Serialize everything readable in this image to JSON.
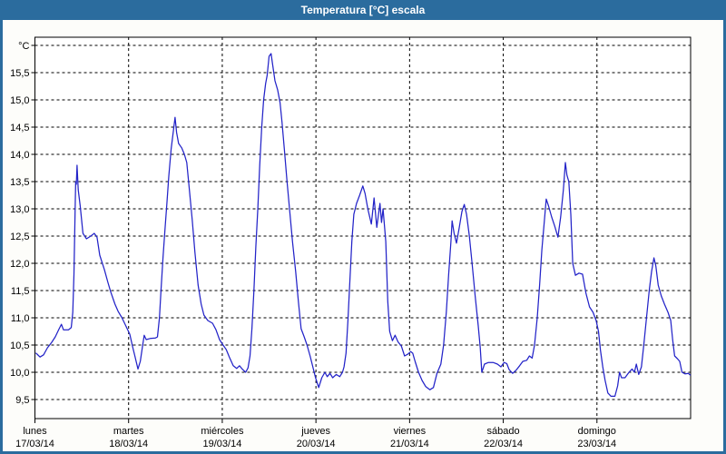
{
  "header": {
    "title": "Temperatura [°C] escala"
  },
  "colors": {
    "titlebar_blue": "#2b6c9e",
    "window_frame": "#2b6c9e",
    "plot_background": "#ffffff",
    "page_background": "#fdfdfa",
    "grid_and_axis": "#000000",
    "series_line": "#2323c8"
  },
  "chart_data": {
    "type": "line",
    "title": "Temperatura [°C] escala",
    "ylabel": "°C",
    "ylim": [
      9.5,
      16.0
    ],
    "x_range_hours": [
      0,
      168
    ],
    "grid": true,
    "legend": "none",
    "ygrid_values": [
      9.5,
      10.0,
      10.5,
      11.0,
      11.5,
      12.0,
      12.5,
      13.0,
      13.5,
      14.0,
      14.5,
      15.0,
      15.5,
      16.0
    ],
    "yticks": [
      {
        "value": 15.5,
        "label": "15,5"
      },
      {
        "value": 15.0,
        "label": "15,0"
      },
      {
        "value": 14.5,
        "label": "14,5"
      },
      {
        "value": 14.0,
        "label": "14,0"
      },
      {
        "value": 13.5,
        "label": "13,5"
      },
      {
        "value": 13.0,
        "label": "13,0"
      },
      {
        "value": 12.5,
        "label": "12,5"
      },
      {
        "value": 12.0,
        "label": "12,0"
      },
      {
        "value": 11.5,
        "label": "11,5"
      },
      {
        "value": 11.0,
        "label": "11,0"
      },
      {
        "value": 10.5,
        "label": "10,5"
      },
      {
        "value": 10.0,
        "label": "10,0"
      },
      {
        "value": 9.5,
        "label": "9,5"
      }
    ],
    "x_axis": {
      "unit": "days",
      "days": [
        {
          "name": "lunes",
          "date": "17/03/14"
        },
        {
          "name": "martes",
          "date": "18/03/14"
        },
        {
          "name": "miércoles",
          "date": "19/03/14"
        },
        {
          "name": "jueves",
          "date": "20/03/14"
        },
        {
          "name": "viernes",
          "date": "21/03/14"
        },
        {
          "name": "sábado",
          "date": "22/03/14"
        },
        {
          "name": "domingo",
          "date": "23/03/14"
        }
      ]
    },
    "series": [
      {
        "name": "Temperatura",
        "color": "#2323c8",
        "points_hours_celsius": [
          [
            0.3,
            10.35
          ],
          [
            1.3,
            10.28
          ],
          [
            2.2,
            10.32
          ],
          [
            3.2,
            10.45
          ],
          [
            4.3,
            10.55
          ],
          [
            5.2,
            10.65
          ],
          [
            6.2,
            10.8
          ],
          [
            6.8,
            10.88
          ],
          [
            7.3,
            10.78
          ],
          [
            8.6,
            10.78
          ],
          [
            9.3,
            10.82
          ],
          [
            9.7,
            11.1
          ],
          [
            10.0,
            11.8
          ],
          [
            10.3,
            13.0
          ],
          [
            10.45,
            13.5
          ],
          [
            10.6,
            13.45
          ],
          [
            10.8,
            13.8
          ],
          [
            11.1,
            13.35
          ],
          [
            11.6,
            13.05
          ],
          [
            12.3,
            12.55
          ],
          [
            13.2,
            12.45
          ],
          [
            14.3,
            12.5
          ],
          [
            15.2,
            12.55
          ],
          [
            15.9,
            12.48
          ],
          [
            16.6,
            12.15
          ],
          [
            17.8,
            11.88
          ],
          [
            18.7,
            11.65
          ],
          [
            19.4,
            11.48
          ],
          [
            20.5,
            11.25
          ],
          [
            21.3,
            11.12
          ],
          [
            22.3,
            11.0
          ],
          [
            23.3,
            10.85
          ],
          [
            24.3,
            10.7
          ],
          [
            25.1,
            10.45
          ],
          [
            25.6,
            10.3
          ],
          [
            26.4,
            10.06
          ],
          [
            27.0,
            10.2
          ],
          [
            27.5,
            10.45
          ],
          [
            28.0,
            10.68
          ],
          [
            28.5,
            10.6
          ],
          [
            29.5,
            10.62
          ],
          [
            30.9,
            10.63
          ],
          [
            31.4,
            10.65
          ],
          [
            31.9,
            11.0
          ],
          [
            32.3,
            11.5
          ],
          [
            32.8,
            12.1
          ],
          [
            33.3,
            12.6
          ],
          [
            33.8,
            13.1
          ],
          [
            34.3,
            13.6
          ],
          [
            34.9,
            14.1
          ],
          [
            35.5,
            14.45
          ],
          [
            35.9,
            14.68
          ],
          [
            36.3,
            14.4
          ],
          [
            36.8,
            14.2
          ],
          [
            37.6,
            14.12
          ],
          [
            38.3,
            14.0
          ],
          [
            38.9,
            13.85
          ],
          [
            39.5,
            13.4
          ],
          [
            40.3,
            12.8
          ],
          [
            41.0,
            12.2
          ],
          [
            41.8,
            11.6
          ],
          [
            42.6,
            11.25
          ],
          [
            43.3,
            11.05
          ],
          [
            44.3,
            10.95
          ],
          [
            45.5,
            10.9
          ],
          [
            46.4,
            10.78
          ],
          [
            47.3,
            10.6
          ],
          [
            48.2,
            10.5
          ],
          [
            49.0,
            10.42
          ],
          [
            49.8,
            10.28
          ],
          [
            50.8,
            10.12
          ],
          [
            51.7,
            10.07
          ],
          [
            52.4,
            10.12
          ],
          [
            53.1,
            10.06
          ],
          [
            54.0,
            10.0
          ],
          [
            54.6,
            10.08
          ],
          [
            55.1,
            10.3
          ],
          [
            55.6,
            10.8
          ],
          [
            56.1,
            11.5
          ],
          [
            56.6,
            12.3
          ],
          [
            57.1,
            13.0
          ],
          [
            57.6,
            13.8
          ],
          [
            58.1,
            14.5
          ],
          [
            58.6,
            15.0
          ],
          [
            59.1,
            15.3
          ],
          [
            59.5,
            15.45
          ],
          [
            60.0,
            15.8
          ],
          [
            60.5,
            15.85
          ],
          [
            60.9,
            15.65
          ],
          [
            61.5,
            15.35
          ],
          [
            62.2,
            15.18
          ],
          [
            62.8,
            14.95
          ],
          [
            63.3,
            14.6
          ],
          [
            63.9,
            14.1
          ],
          [
            64.6,
            13.5
          ],
          [
            65.3,
            12.95
          ],
          [
            66.0,
            12.4
          ],
          [
            66.8,
            11.85
          ],
          [
            67.5,
            11.3
          ],
          [
            68.2,
            10.8
          ],
          [
            69.0,
            10.65
          ],
          [
            69.7,
            10.5
          ],
          [
            70.5,
            10.3
          ],
          [
            71.2,
            10.1
          ],
          [
            71.9,
            9.9
          ],
          [
            72.7,
            9.72
          ],
          [
            73.5,
            9.9
          ],
          [
            74.3,
            10.0
          ],
          [
            74.9,
            9.92
          ],
          [
            75.6,
            9.98
          ],
          [
            76.3,
            9.9
          ],
          [
            77.2,
            9.96
          ],
          [
            78.1,
            9.92
          ],
          [
            78.8,
            10.0
          ],
          [
            79.2,
            10.1
          ],
          [
            79.7,
            10.35
          ],
          [
            80.2,
            10.95
          ],
          [
            80.7,
            11.7
          ],
          [
            81.2,
            12.4
          ],
          [
            81.7,
            12.9
          ],
          [
            82.4,
            13.1
          ],
          [
            83.2,
            13.25
          ],
          [
            84.0,
            13.42
          ],
          [
            84.6,
            13.28
          ],
          [
            85.3,
            13.0
          ],
          [
            86.2,
            12.72
          ],
          [
            86.9,
            13.2
          ],
          [
            87.6,
            12.66
          ],
          [
            88.4,
            13.1
          ],
          [
            88.8,
            12.75
          ],
          [
            89.2,
            13.0
          ],
          [
            89.9,
            12.4
          ],
          [
            90.4,
            11.3
          ],
          [
            90.9,
            10.75
          ],
          [
            91.6,
            10.58
          ],
          [
            92.3,
            10.68
          ],
          [
            93.0,
            10.56
          ],
          [
            93.9,
            10.48
          ],
          [
            94.7,
            10.3
          ],
          [
            95.5,
            10.33
          ],
          [
            96.3,
            10.38
          ],
          [
            96.8,
            10.35
          ],
          [
            97.4,
            10.2
          ],
          [
            98.3,
            10.0
          ],
          [
            99.2,
            9.85
          ],
          [
            100.1,
            9.74
          ],
          [
            101.2,
            9.68
          ],
          [
            102.1,
            9.72
          ],
          [
            103.0,
            9.98
          ],
          [
            104.0,
            10.15
          ],
          [
            104.7,
            10.5
          ],
          [
            105.4,
            11.1
          ],
          [
            106.0,
            11.8
          ],
          [
            106.6,
            12.4
          ],
          [
            106.9,
            12.78
          ],
          [
            107.4,
            12.55
          ],
          [
            108.0,
            12.37
          ],
          [
            108.7,
            12.65
          ],
          [
            109.4,
            12.95
          ],
          [
            110.0,
            13.08
          ],
          [
            110.6,
            12.9
          ],
          [
            111.3,
            12.5
          ],
          [
            112.0,
            12.0
          ],
          [
            112.8,
            11.4
          ],
          [
            113.6,
            10.85
          ],
          [
            114.1,
            10.45
          ],
          [
            114.5,
            10.0
          ],
          [
            115.2,
            10.15
          ],
          [
            116.2,
            10.18
          ],
          [
            117.4,
            10.18
          ],
          [
            118.5,
            10.15
          ],
          [
            119.4,
            10.1
          ],
          [
            120.2,
            10.18
          ],
          [
            120.9,
            10.16
          ],
          [
            121.5,
            10.05
          ],
          [
            122.4,
            9.98
          ],
          [
            123.3,
            10.04
          ],
          [
            124.2,
            10.12
          ],
          [
            125.0,
            10.2
          ],
          [
            126.0,
            10.22
          ],
          [
            126.7,
            10.3
          ],
          [
            127.4,
            10.26
          ],
          [
            128.0,
            10.5
          ],
          [
            128.7,
            11.0
          ],
          [
            129.3,
            11.6
          ],
          [
            129.9,
            12.25
          ],
          [
            130.5,
            12.75
          ],
          [
            131.0,
            13.18
          ],
          [
            131.6,
            13.05
          ],
          [
            132.4,
            12.85
          ],
          [
            133.2,
            12.68
          ],
          [
            134.0,
            12.48
          ],
          [
            134.7,
            12.85
          ],
          [
            135.4,
            13.35
          ],
          [
            135.9,
            13.85
          ],
          [
            136.3,
            13.62
          ],
          [
            136.8,
            13.5
          ],
          [
            137.3,
            12.9
          ],
          [
            137.8,
            12.0
          ],
          [
            138.5,
            11.78
          ],
          [
            139.4,
            11.82
          ],
          [
            140.3,
            11.8
          ],
          [
            141.2,
            11.45
          ],
          [
            142.1,
            11.2
          ],
          [
            143.0,
            11.1
          ],
          [
            143.8,
            10.95
          ],
          [
            144.4,
            10.75
          ],
          [
            144.9,
            10.4
          ],
          [
            145.5,
            10.1
          ],
          [
            146.1,
            9.85
          ],
          [
            146.8,
            9.62
          ],
          [
            147.6,
            9.56
          ],
          [
            148.6,
            9.56
          ],
          [
            149.3,
            9.75
          ],
          [
            149.8,
            10.0
          ],
          [
            150.3,
            9.9
          ],
          [
            151.2,
            9.9
          ],
          [
            152.2,
            10.0
          ],
          [
            153.0,
            10.06
          ],
          [
            153.6,
            10.0
          ],
          [
            154.1,
            10.15
          ],
          [
            154.7,
            9.96
          ],
          [
            155.4,
            10.1
          ],
          [
            156.0,
            10.5
          ],
          [
            156.7,
            11.0
          ],
          [
            157.4,
            11.5
          ],
          [
            158.0,
            11.85
          ],
          [
            158.6,
            12.1
          ],
          [
            159.1,
            11.95
          ],
          [
            159.7,
            11.6
          ],
          [
            160.5,
            11.4
          ],
          [
            161.3,
            11.25
          ],
          [
            162.2,
            11.1
          ],
          [
            162.9,
            10.95
          ],
          [
            163.4,
            10.6
          ],
          [
            163.9,
            10.3
          ],
          [
            164.6,
            10.25
          ],
          [
            165.2,
            10.2
          ],
          [
            165.8,
            10.0
          ],
          [
            166.6,
            9.97
          ],
          [
            167.4,
            9.98
          ],
          [
            167.9,
            9.95
          ]
        ]
      }
    ]
  }
}
